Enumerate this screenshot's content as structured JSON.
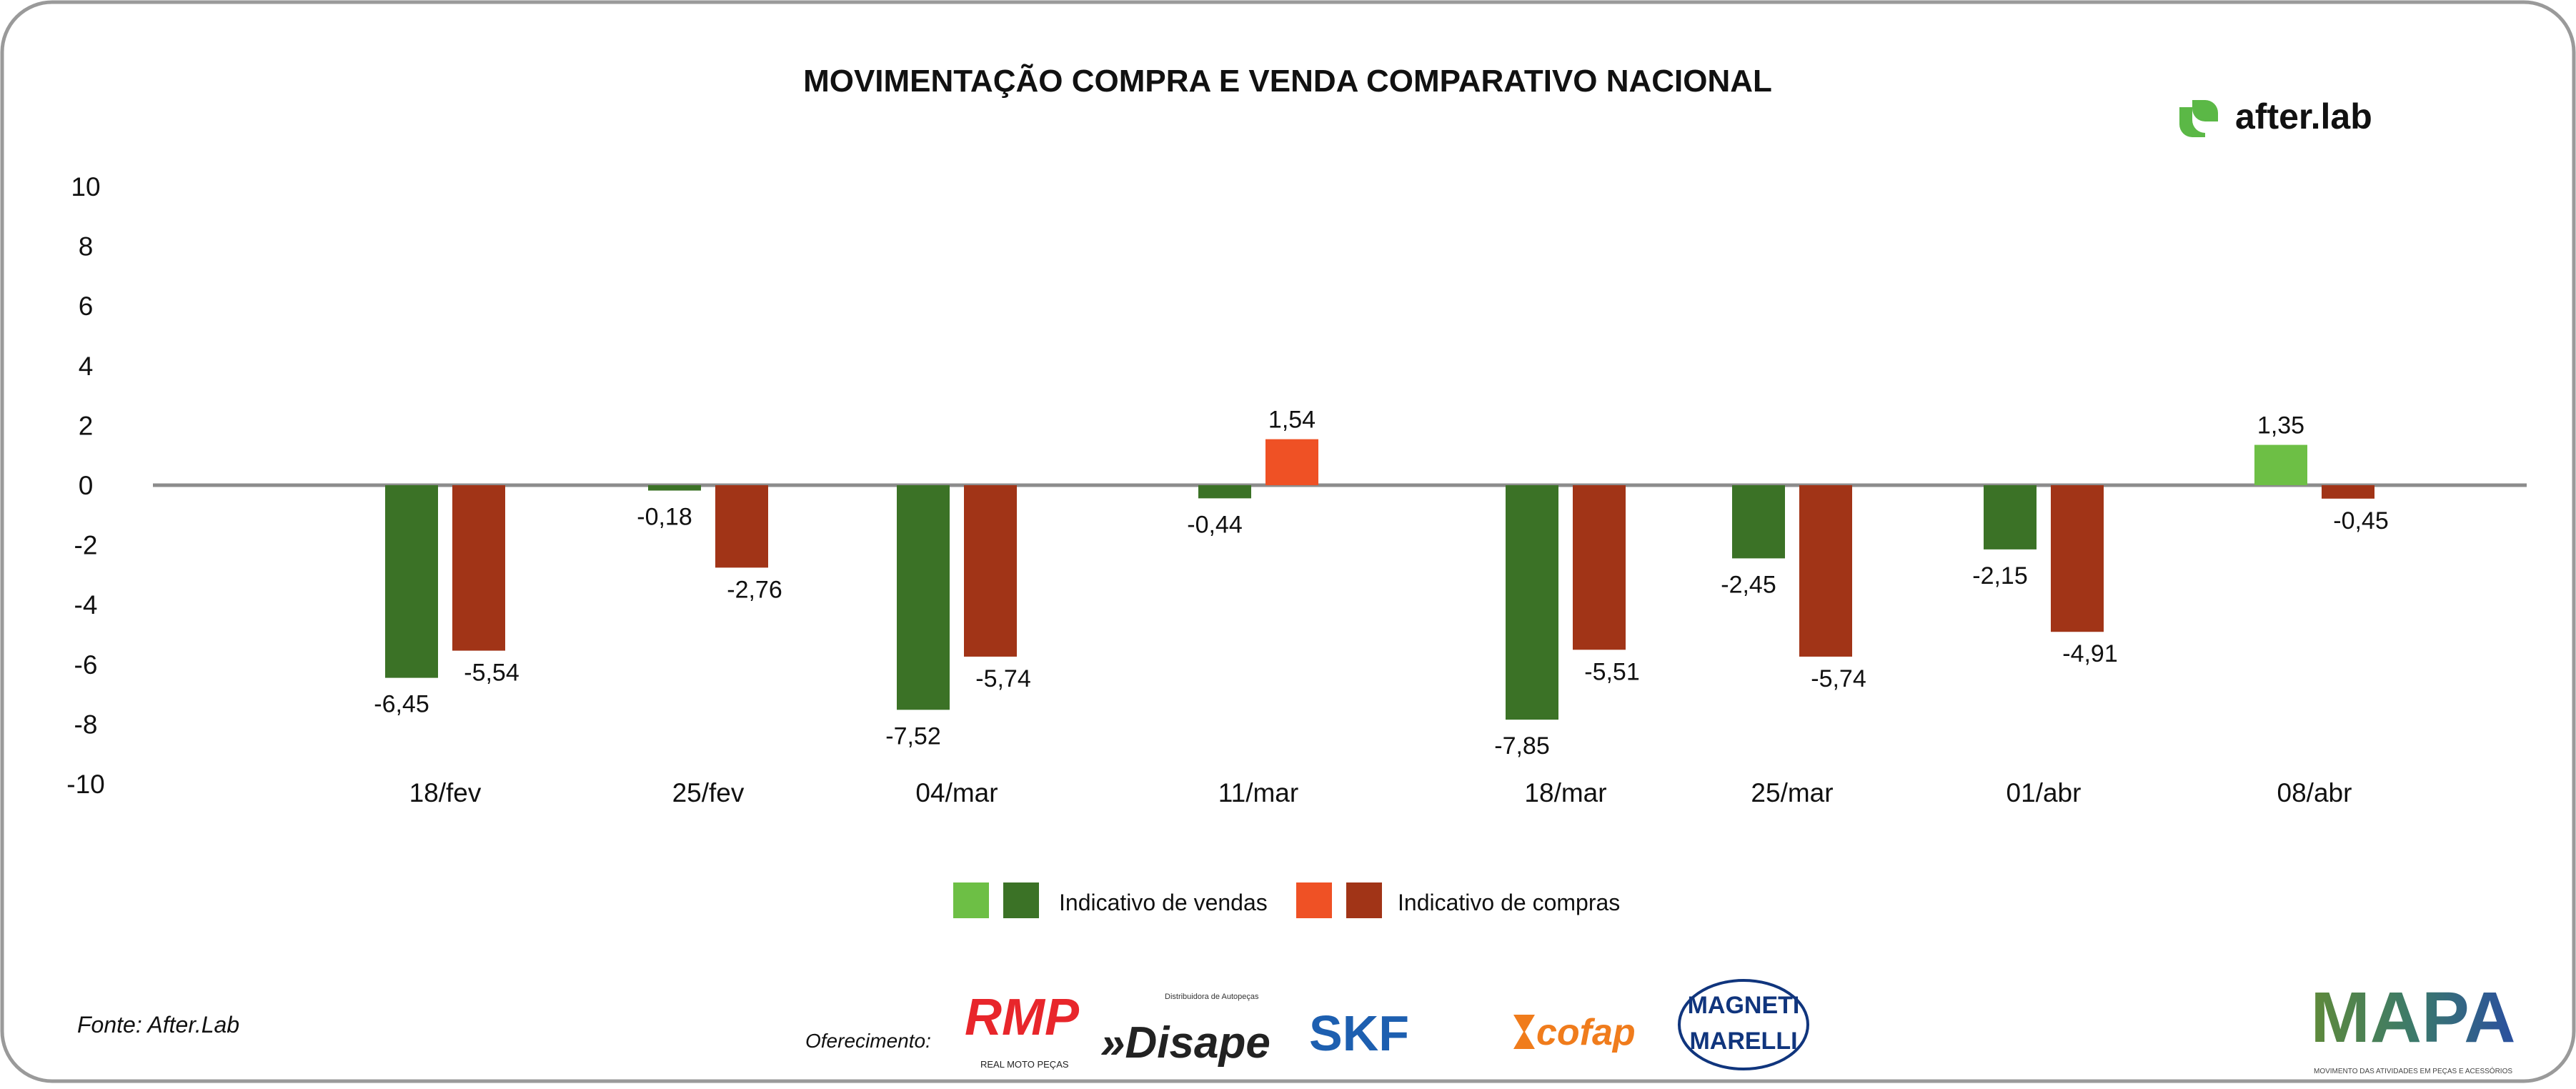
{
  "chart_data": {
    "type": "bar",
    "title": "MOVIMENTAÇÃO COMPRA E VENDA COMPARATIVO NACIONAL",
    "categories": [
      "18/fev",
      "25/fev",
      "04/mar",
      "11/mar",
      "18/mar",
      "25/mar",
      "01/abr",
      "08/abr"
    ],
    "series": [
      {
        "name": "Indicativo de vendas",
        "values": [
          -6.45,
          -0.18,
          -7.52,
          -0.44,
          -7.85,
          -2.45,
          -2.15,
          1.35
        ],
        "labels": [
          "-6,45",
          "-0,18",
          "-7,52",
          "-0,44",
          "-7,85",
          "-2,45",
          "-2,15",
          "1,35"
        ],
        "color_positive": "#6dbf45",
        "color_negative": "#3b7226"
      },
      {
        "name": "Indicativo de compras",
        "values": [
          -5.54,
          -2.76,
          -5.74,
          1.54,
          -5.51,
          -5.74,
          -4.91,
          -0.45
        ],
        "labels": [
          "-5,54",
          "-2,76",
          "-5,74",
          "1,54",
          "-5,51",
          "-5,74",
          "-4,91",
          "-0,45"
        ],
        "color_positive": "#ef5125",
        "color_negative": "#a13417"
      }
    ],
    "yticks": [
      "10",
      "8",
      "6",
      "4",
      "2",
      "0",
      "-2",
      "-4",
      "-6",
      "-8",
      "-10"
    ],
    "ytick_values": [
      10,
      8,
      6,
      4,
      2,
      0,
      -2,
      -4,
      -6,
      -8,
      -10
    ],
    "ylim": [
      -10,
      10
    ],
    "xlabel": "",
    "ylabel": "",
    "grid": false,
    "legend_placement": "bottom"
  },
  "source": "Fonte: After.Lab",
  "sponsor_label": "Oferecimento:",
  "logos": {
    "afterlab": "after.lab",
    "rmp": "RMP",
    "rmp_sub": "REAL MOTO PEÇAS",
    "disape": "»Disape",
    "disape_sub": "Distribuidora de Autopeças",
    "skf": "SKF",
    "cofap": "cofap",
    "magneti1": "MAGNETI",
    "magneti2": "MARELLI",
    "mapa": "MAPA",
    "mapa_sub": "MOVIMENTO DAS ATIVIDADES EM PEÇAS E ACESSÓRIOS"
  }
}
